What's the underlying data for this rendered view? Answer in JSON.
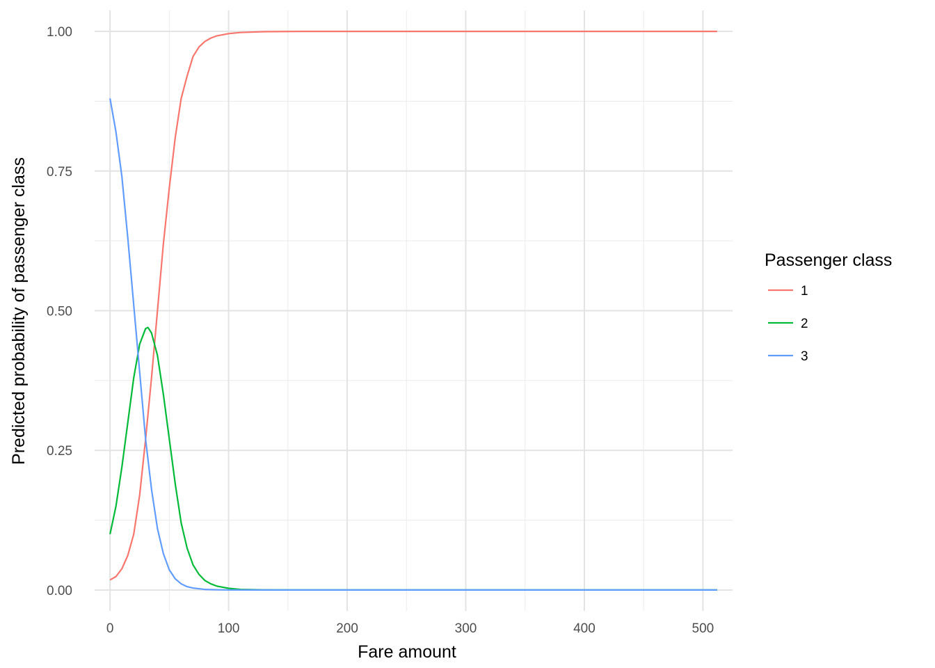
{
  "chart_data": {
    "type": "line",
    "title": "",
    "xlabel": "Fare amount",
    "ylabel": "Predicted probability of passenger class",
    "xlim": [
      -13,
      525
    ],
    "ylim": [
      -0.0375,
      1.0375
    ],
    "x_ticks": [
      0,
      100,
      200,
      300,
      400,
      500
    ],
    "x_tick_labels": [
      "0",
      "100",
      "200",
      "300",
      "400",
      "500"
    ],
    "y_ticks": [
      0,
      0.25,
      0.5,
      0.75,
      1.0
    ],
    "y_tick_labels": [
      "0.00",
      "0.25",
      "0.50",
      "0.75",
      "1.00"
    ],
    "grid": true,
    "legend": {
      "title": "Passenger class",
      "placement": "right"
    },
    "series": [
      {
        "name": "1",
        "color": "#F8766D",
        "points": [
          [
            0,
            0.018
          ],
          [
            5,
            0.024
          ],
          [
            10,
            0.038
          ],
          [
            15,
            0.062
          ],
          [
            20,
            0.1
          ],
          [
            25,
            0.17
          ],
          [
            30,
            0.27
          ],
          [
            35,
            0.38
          ],
          [
            40,
            0.5
          ],
          [
            45,
            0.62
          ],
          [
            50,
            0.72
          ],
          [
            55,
            0.81
          ],
          [
            60,
            0.88
          ],
          [
            65,
            0.92
          ],
          [
            70,
            0.955
          ],
          [
            75,
            0.972
          ],
          [
            80,
            0.982
          ],
          [
            85,
            0.988
          ],
          [
            90,
            0.992
          ],
          [
            100,
            0.996
          ],
          [
            110,
            0.998
          ],
          [
            130,
            0.9995
          ],
          [
            160,
            1.0
          ],
          [
            200,
            1.0
          ],
          [
            300,
            1.0
          ],
          [
            400,
            1.0
          ],
          [
            512,
            1.0
          ]
        ]
      },
      {
        "name": "2",
        "color": "#00BA38",
        "points": [
          [
            0,
            0.1
          ],
          [
            5,
            0.15
          ],
          [
            10,
            0.22
          ],
          [
            15,
            0.3
          ],
          [
            20,
            0.38
          ],
          [
            25,
            0.44
          ],
          [
            30,
            0.468
          ],
          [
            32,
            0.47
          ],
          [
            35,
            0.46
          ],
          [
            40,
            0.42
          ],
          [
            45,
            0.35
          ],
          [
            50,
            0.27
          ],
          [
            55,
            0.19
          ],
          [
            60,
            0.12
          ],
          [
            65,
            0.075
          ],
          [
            70,
            0.045
          ],
          [
            75,
            0.028
          ],
          [
            80,
            0.017
          ],
          [
            85,
            0.011
          ],
          [
            90,
            0.007
          ],
          [
            100,
            0.003
          ],
          [
            110,
            0.001
          ],
          [
            130,
            0.0002
          ],
          [
            160,
            0.0
          ],
          [
            200,
            0.0
          ],
          [
            300,
            0.0
          ],
          [
            400,
            0.0
          ],
          [
            512,
            0.0
          ]
        ]
      },
      {
        "name": "3",
        "color": "#619CFF",
        "points": [
          [
            0,
            0.88
          ],
          [
            5,
            0.82
          ],
          [
            10,
            0.74
          ],
          [
            15,
            0.63
          ],
          [
            20,
            0.51
          ],
          [
            25,
            0.39
          ],
          [
            30,
            0.27
          ],
          [
            35,
            0.18
          ],
          [
            40,
            0.11
          ],
          [
            45,
            0.065
          ],
          [
            50,
            0.036
          ],
          [
            55,
            0.02
          ],
          [
            60,
            0.011
          ],
          [
            65,
            0.006
          ],
          [
            70,
            0.0035
          ],
          [
            80,
            0.001
          ],
          [
            90,
            0.0004
          ],
          [
            100,
            0.0001
          ],
          [
            130,
            0.0
          ],
          [
            200,
            0.0
          ],
          [
            300,
            0.0
          ],
          [
            400,
            0.0
          ],
          [
            512,
            0.0
          ]
        ]
      }
    ]
  }
}
